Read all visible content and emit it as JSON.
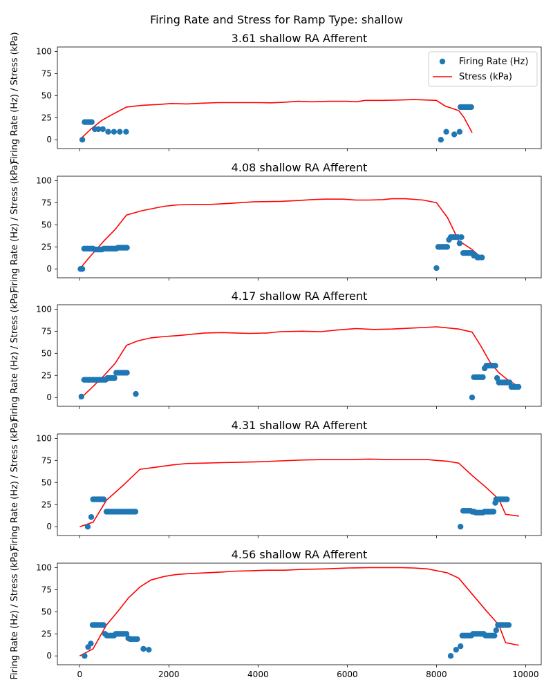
{
  "figure": {
    "suptitle": "Firing Rate and Stress for Ramp Type: shallow"
  },
  "chart_data": [
    {
      "type": "scatter+line",
      "title": "3.61 shallow RA Afferent",
      "ylabel": "Firing Rate (Hz) / Stress (kPa)",
      "xlabel": "",
      "xlim": [
        -500,
        10350
      ],
      "ylim": [
        -10,
        105
      ],
      "xticks": [
        0,
        2000,
        4000,
        6000,
        8000,
        10000
      ],
      "yticks": [
        0,
        25,
        50,
        75,
        100
      ],
      "show_xtick_labels": false,
      "grid": false,
      "legend": {
        "placement": "top-right",
        "entries": [
          "Firing Rate (Hz)",
          "Stress (kPa)"
        ]
      },
      "series": [
        {
          "name": "Firing Rate (Hz)",
          "kind": "scatter",
          "color": "#1f77b4",
          "x": [
            60,
            110,
            150,
            190,
            230,
            270,
            340,
            420,
            520,
            640,
            770,
            900,
            1040,
            8100,
            8220,
            8400,
            8520,
            8540,
            8580,
            8620,
            8660,
            8700,
            8740,
            8780
          ],
          "y": [
            0,
            20,
            20,
            20,
            20,
            20,
            12,
            12,
            12,
            9,
            9,
            9,
            9,
            0,
            9,
            6,
            9,
            37,
            37,
            37,
            37,
            37,
            37,
            37
          ]
        },
        {
          "name": "Stress (kPa)",
          "kind": "line",
          "color": "#ff0000",
          "x": [
            0,
            250,
            500,
            750,
            1050,
            1400,
            1800,
            2050,
            2400,
            2800,
            3100,
            3600,
            4000,
            4300,
            4600,
            4900,
            5200,
            5600,
            6000,
            6200,
            6400,
            6800,
            7200,
            7500,
            8000,
            8200,
            8500,
            8620,
            8800
          ],
          "y": [
            0,
            12,
            22,
            29,
            37,
            39,
            40,
            41,
            40.5,
            41.5,
            42,
            42,
            42,
            41.8,
            42.5,
            43.5,
            43,
            43.5,
            43.5,
            43,
            44.5,
            44.5,
            45,
            45.5,
            44.5,
            38,
            33,
            25,
            8
          ]
        }
      ]
    },
    {
      "type": "scatter+line",
      "title": "4.08 shallow RA Afferent",
      "ylabel": "Firing Rate (Hz) / Stress (kPa)",
      "xlabel": "",
      "xlim": [
        -500,
        10350
      ],
      "ylim": [
        -10,
        105
      ],
      "xticks": [
        0,
        2000,
        4000,
        6000,
        8000,
        10000
      ],
      "yticks": [
        0,
        25,
        50,
        75,
        100
      ],
      "show_xtick_labels": false,
      "grid": false,
      "series": [
        {
          "name": "Firing Rate (Hz)",
          "kind": "scatter",
          "color": "#1f77b4",
          "x": [
            20,
            60,
            100,
            140,
            180,
            220,
            260,
            300,
            340,
            380,
            420,
            460,
            500,
            540,
            580,
            620,
            660,
            700,
            740,
            780,
            820,
            860,
            900,
            940,
            980,
            1020,
            1060,
            8000,
            8040,
            8080,
            8120,
            8160,
            8200,
            8240,
            8280,
            8320,
            8360,
            8400,
            8440,
            8480,
            8520,
            8560,
            8600,
            8640,
            8680,
            8720,
            8760,
            8800,
            8840,
            8880,
            8920,
            8960,
            9020
          ],
          "y": [
            0,
            0,
            23,
            23,
            23,
            23,
            23,
            23,
            22,
            22,
            22,
            22,
            22,
            23,
            23,
            23,
            23,
            23,
            23,
            23,
            23,
            24,
            24,
            24,
            24,
            24,
            24,
            1,
            25,
            25,
            25,
            25,
            25,
            25,
            33,
            36,
            36,
            36,
            36,
            36,
            29,
            36,
            18,
            18,
            18,
            18,
            18,
            18,
            15,
            15,
            13,
            13,
            13
          ]
        },
        {
          "name": "Stress (kPa)",
          "kind": "line",
          "color": "#ff0000",
          "x": [
            0,
            250,
            550,
            800,
            1050,
            1400,
            1700,
            1900,
            2200,
            2600,
            2900,
            3300,
            3600,
            3900,
            4500,
            4900,
            5200,
            5500,
            5900,
            6200,
            6500,
            6800,
            7000,
            7300,
            7700,
            8000,
            8250,
            8500,
            8800,
            9000
          ],
          "y": [
            0,
            15,
            32,
            45,
            61,
            66,
            69,
            71,
            72.5,
            73,
            73,
            74,
            75,
            76,
            76.5,
            77.5,
            78.5,
            79,
            79,
            78,
            78,
            78.5,
            79.5,
            79.5,
            78,
            75,
            58,
            32,
            22,
            13
          ]
        }
      ]
    },
    {
      "type": "scatter+line",
      "title": "4.17 shallow RA Afferent",
      "ylabel": "Firing Rate (Hz) / Stress (kPa)",
      "xlabel": "",
      "xlim": [
        -500,
        10350
      ],
      "ylim": [
        -10,
        105
      ],
      "xticks": [
        0,
        2000,
        4000,
        6000,
        8000,
        10000
      ],
      "yticks": [
        0,
        25,
        50,
        75,
        100
      ],
      "show_xtick_labels": false,
      "grid": false,
      "series": [
        {
          "name": "Firing Rate (Hz)",
          "kind": "scatter",
          "color": "#1f77b4",
          "x": [
            40,
            100,
            140,
            180,
            220,
            260,
            300,
            340,
            380,
            420,
            460,
            500,
            540,
            580,
            620,
            660,
            700,
            740,
            780,
            820,
            860,
            900,
            940,
            980,
            1020,
            1060,
            1260,
            8800,
            8840,
            8880,
            8920,
            8960,
            9000,
            9040,
            9080,
            9120,
            9160,
            9200,
            9240,
            9280,
            9320,
            9360,
            9400,
            9440,
            9480,
            9520,
            9560,
            9600,
            9640,
            9680,
            9720,
            9760,
            9800,
            9840
          ],
          "y": [
            1,
            20,
            20,
            20,
            20,
            20,
            20,
            20,
            20,
            20,
            20,
            20,
            20,
            20,
            22,
            22,
            22,
            22,
            22,
            28,
            28,
            28,
            28,
            28,
            28,
            28,
            4,
            0,
            23,
            23,
            23,
            23,
            23,
            23,
            33,
            36,
            36,
            36,
            36,
            36,
            36,
            22,
            17,
            17,
            17,
            17,
            17,
            17,
            17,
            12,
            12,
            12,
            12,
            12
          ]
        },
        {
          "name": "Stress (kPa)",
          "kind": "line",
          "color": "#ff0000",
          "x": [
            0,
            250,
            550,
            800,
            1050,
            1300,
            1600,
            1900,
            2200,
            2500,
            2800,
            3200,
            3500,
            3800,
            4200,
            4500,
            5000,
            5400,
            5800,
            6200,
            6600,
            7000,
            7400,
            8000,
            8200,
            8500,
            8800,
            9000,
            9200,
            9400,
            9600,
            9850
          ],
          "y": [
            -2,
            10,
            25,
            39,
            59,
            64,
            67.5,
            69,
            70,
            71.5,
            73,
            73.5,
            73,
            72.5,
            73,
            74.5,
            75,
            74.5,
            76.5,
            78,
            77,
            77.5,
            78.5,
            80,
            79,
            77.5,
            74,
            58,
            40,
            28,
            20,
            12
          ]
        }
      ]
    },
    {
      "type": "scatter+line",
      "title": "4.31 shallow RA Afferent",
      "ylabel": "Firing Rate (Hz) / Stress (kPa)",
      "xlabel": "",
      "xlim": [
        -500,
        10350
      ],
      "ylim": [
        -10,
        105
      ],
      "xticks": [
        0,
        2000,
        4000,
        6000,
        8000,
        10000
      ],
      "yticks": [
        0,
        25,
        50,
        75,
        100
      ],
      "show_xtick_labels": false,
      "grid": false,
      "series": [
        {
          "name": "Firing Rate (Hz)",
          "kind": "scatter",
          "color": "#1f77b4",
          "x": [
            180,
            260,
            300,
            340,
            380,
            420,
            460,
            500,
            540,
            600,
            650,
            700,
            750,
            800,
            850,
            900,
            950,
            1000,
            1050,
            1100,
            1150,
            1200,
            1250,
            8540,
            8600,
            8640,
            8680,
            8720,
            8760,
            8800,
            8840,
            8880,
            8920,
            8960,
            9000,
            9040,
            9080,
            9120,
            9160,
            9200,
            9240,
            9280,
            9320,
            9340,
            9380,
            9420,
            9460,
            9500,
            9540,
            9580
          ],
          "y": [
            0,
            11,
            31,
            31,
            31,
            31,
            31,
            31,
            31,
            17,
            17,
            17,
            17,
            17,
            17,
            17,
            17,
            17,
            17,
            17,
            17,
            17,
            17,
            0,
            18,
            18,
            18,
            18,
            18,
            17,
            17,
            16,
            16,
            16,
            16,
            16,
            17,
            17,
            17,
            17,
            17,
            17,
            27,
            31,
            31,
            31,
            31,
            31,
            31,
            31
          ]
        },
        {
          "name": "Stress (kPa)",
          "kind": "line",
          "color": "#ff0000",
          "x": [
            0,
            300,
            600,
            1000,
            1350,
            1500,
            1800,
            2100,
            2400,
            2800,
            3200,
            3600,
            4000,
            4500,
            5000,
            5500,
            6000,
            6500,
            7000,
            7500,
            7800,
            8000,
            8250,
            8500,
            8800,
            9100,
            9400,
            9550,
            9850
          ],
          "y": [
            0,
            5,
            30,
            48,
            65,
            66,
            68,
            70,
            71.5,
            72,
            72.5,
            73,
            73.5,
            74.5,
            75.5,
            76,
            76,
            76.5,
            76,
            76,
            76,
            75,
            74,
            72,
            58,
            45,
            31,
            14,
            12
          ]
        }
      ]
    },
    {
      "type": "scatter+line",
      "title": "4.56 shallow RA Afferent",
      "ylabel": "Firing Rate (Hz) / Stress (kPa)",
      "xlabel": "",
      "xlim": [
        -500,
        10350
      ],
      "ylim": [
        -10,
        105
      ],
      "xticks": [
        0,
        2000,
        4000,
        6000,
        8000,
        10000
      ],
      "yticks": [
        0,
        25,
        50,
        75,
        100
      ],
      "show_xtick_labels": true,
      "grid": false,
      "series": [
        {
          "name": "Firing Rate (Hz)",
          "kind": "scatter",
          "color": "#1f77b4",
          "x": [
            110,
            190,
            250,
            290,
            330,
            370,
            410,
            450,
            490,
            530,
            570,
            610,
            650,
            690,
            730,
            770,
            810,
            850,
            890,
            930,
            970,
            1010,
            1050,
            1090,
            1130,
            1170,
            1210,
            1250,
            1290,
            1430,
            1550,
            8320,
            8440,
            8540,
            8580,
            8620,
            8660,
            8700,
            8740,
            8780,
            8820,
            8860,
            8900,
            8940,
            8980,
            9020,
            9060,
            9100,
            9140,
            9180,
            9220,
            9260,
            9300,
            9340,
            9380,
            9420,
            9460,
            9500,
            9540,
            9580,
            9620
          ],
          "y": [
            0,
            10,
            14,
            35,
            35,
            35,
            35,
            35,
            35,
            35,
            25,
            23,
            23,
            23,
            23,
            23,
            25,
            25,
            25,
            25,
            25,
            25,
            25,
            20,
            19,
            19,
            19,
            19,
            19,
            8,
            7,
            0,
            7,
            11,
            23,
            23,
            23,
            23,
            23,
            23,
            25,
            25,
            25,
            25,
            25,
            25,
            25,
            23,
            23,
            23,
            23,
            23,
            23,
            29,
            35,
            35,
            35,
            35,
            35,
            35,
            35
          ]
        },
        {
          "name": "Stress (kPa)",
          "kind": "line",
          "color": "#ff0000",
          "x": [
            0,
            300,
            600,
            850,
            1100,
            1350,
            1600,
            1900,
            2150,
            2400,
            2800,
            3200,
            3500,
            3900,
            4200,
            4600,
            5000,
            5500,
            6000,
            6500,
            7000,
            7200,
            7500,
            7800,
            8000,
            8250,
            8500,
            8800,
            9100,
            9400,
            9550,
            9850
          ],
          "y": [
            0,
            8,
            35,
            50,
            66,
            78,
            86,
            90,
            92,
            93,
            94,
            95,
            96,
            96.5,
            97,
            97,
            98,
            98.5,
            99.5,
            100,
            100,
            100,
            99.5,
            98.5,
            96.5,
            94,
            88,
            70,
            52,
            35,
            15,
            12
          ]
        }
      ]
    }
  ]
}
